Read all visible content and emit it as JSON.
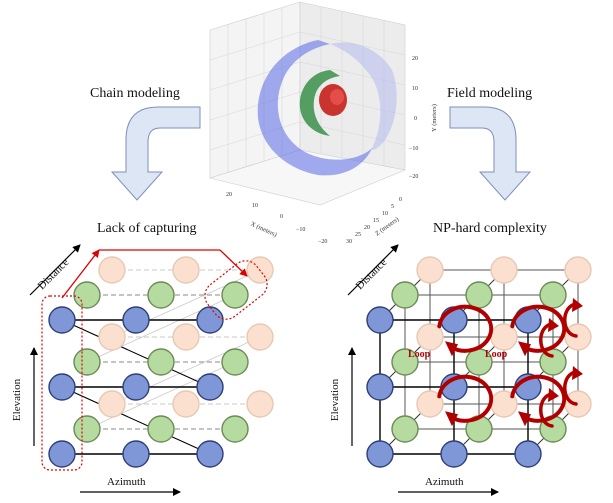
{
  "labels": {
    "chain_modeling": "Chain modeling",
    "field_modeling": "Field modeling",
    "lack_of_capturing": "Lack of capturing",
    "np_hard": "NP-hard complexity"
  },
  "axes": {
    "distance": "Distance",
    "elevation": "Elevation",
    "azimuth": "Azimuth"
  },
  "loop_label": "Loop",
  "plot3d": {
    "x_label": "X (meters)",
    "y_label": "Y (meters)",
    "z_label": "Z (meters)",
    "x_ticks": [
      "20",
      "10",
      "0",
      "−10",
      "−20"
    ],
    "y_ticks": [
      "20",
      "10",
      "0",
      "−10",
      "−20"
    ],
    "z_ticks": [
      "30",
      "25",
      "20",
      "15",
      "10",
      "5",
      "0"
    ]
  },
  "colors": {
    "blue_node": "#7f97d6",
    "green_node": "#b6dba0",
    "peach_node": "#fbe0cf",
    "red_accent": "#c00000",
    "arrow_fill": "#dce6f5",
    "arrow_stroke": "#7f8fb8"
  }
}
